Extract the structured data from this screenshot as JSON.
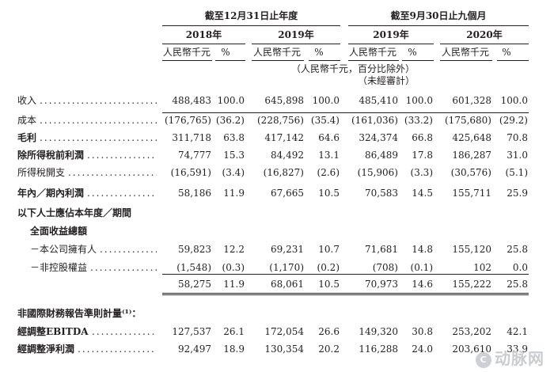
{
  "header": {
    "group1": "截至12月31日止年度",
    "group2": "截至9月30日止九個月",
    "years": [
      "2018年",
      "2019年",
      "2019年",
      "2020年"
    ],
    "unit_rmb": "人民幣千元",
    "unit_pct": "%",
    "note1": "（人民幣千元，百分比除外）",
    "note2": "（未經審計）"
  },
  "rows": [
    {
      "label": "收入",
      "bold": false,
      "indent": false,
      "dots": true,
      "values": [
        "488,483",
        "100.0",
        "645,898",
        "100.0",
        "485,410",
        "100.0",
        "601,328",
        "100.0"
      ]
    },
    {
      "label": "成本",
      "bold": false,
      "indent": false,
      "dots": true,
      "values": [
        "(176,765)",
        "(36.2)",
        "(228,756)",
        "(35.4)",
        "(161,036)",
        "(33.2)",
        "(175,680)",
        "(29.2)"
      ]
    },
    {
      "label": "毛利",
      "bold": true,
      "indent": false,
      "dots": true,
      "values": [
        "311,718",
        "63.8",
        "417,142",
        "64.6",
        "324,374",
        "66.8",
        "425,648",
        "70.8"
      ]
    },
    {
      "label": "除所得稅前利潤",
      "bold": true,
      "indent": false,
      "dots": true,
      "values": [
        "74,777",
        "15.3",
        "84,492",
        "13.1",
        "86,489",
        "17.8",
        "186,287",
        "31.0"
      ]
    },
    {
      "label": "所得稅開支",
      "bold": false,
      "indent": false,
      "dots": true,
      "values": [
        "(16,591)",
        "(3.4)",
        "(16,827)",
        "(2.6)",
        "(15,906)",
        "(3.3)",
        "(30,576)",
        "(5.1)"
      ]
    },
    {
      "label": "年內／期內利潤",
      "bold": true,
      "indent": false,
      "dots": true,
      "values": [
        "58,186",
        "11.9",
        "67,665",
        "10.5",
        "70,583",
        "14.5",
        "155,711",
        "25.9"
      ]
    },
    {
      "label": "以下人士應佔本年度／期間",
      "bold": true,
      "indent": false,
      "dots": false,
      "values": [
        "",
        "",
        "",
        "",
        "",
        "",
        "",
        ""
      ]
    },
    {
      "label": "全面收益總額",
      "bold": true,
      "indent": true,
      "dots": false,
      "values": [
        "",
        "",
        "",
        "",
        "",
        "",
        "",
        ""
      ]
    },
    {
      "label": "－本公司擁有人",
      "bold": false,
      "indent": true,
      "dots": true,
      "values": [
        "59,823",
        "12.2",
        "69,231",
        "10.7",
        "71,681",
        "14.8",
        "155,120",
        "25.8"
      ]
    },
    {
      "label": "－非控股權益",
      "bold": false,
      "indent": true,
      "dots": true,
      "values": [
        "(1,548)",
        "(0.3)",
        "(1,170)",
        "(0.2)",
        "(708)",
        "(0.1)",
        "102",
        "0.0"
      ]
    },
    {
      "label": "",
      "bold": false,
      "indent": false,
      "dots": false,
      "values": [
        "58,275",
        "11.9",
        "68,061",
        "10.5",
        "70,973",
        "14.6",
        "155,222",
        "25.8"
      ]
    },
    {
      "label": "非國際財務報告準則計量⁽¹⁾：",
      "bold": true,
      "indent": false,
      "dots": false,
      "values": [
        "",
        "",
        "",
        "",
        "",
        "",
        "",
        ""
      ]
    },
    {
      "label": "經調整EBITDA",
      "bold": true,
      "indent": false,
      "dots": true,
      "values": [
        "127,537",
        "26.1",
        "172,054",
        "26.6",
        "149,320",
        "30.8",
        "253,202",
        "42.1"
      ]
    },
    {
      "label": "經調整淨利潤",
      "bold": true,
      "indent": false,
      "dots": true,
      "values": [
        "92,497",
        "18.9",
        "130,354",
        "20.2",
        "116,288",
        "24.0",
        "203,610",
        "33.9"
      ]
    }
  ],
  "watermark": {
    "logo": "C",
    "text": "动脉网"
  }
}
